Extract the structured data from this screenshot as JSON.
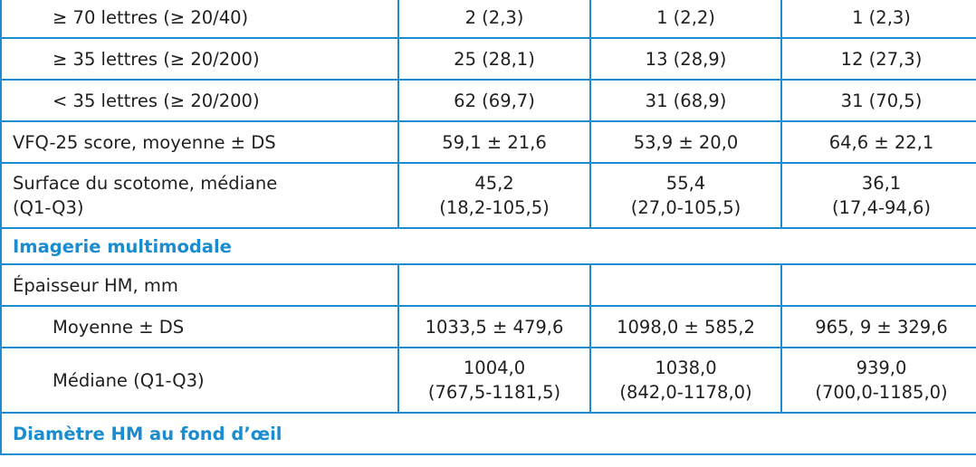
{
  "rows": [
    {
      "type": "data",
      "indent": true,
      "label": "≥ 70 lettres (≥ 20/40)",
      "v1": "2 (2,3)",
      "v2": "1 (2,2)",
      "v3": "1 (2,3)"
    },
    {
      "type": "data",
      "indent": true,
      "label": "≥ 35 lettres (≥ 20/200)",
      "v1": "25 (28,1)",
      "v2": "13 (28,9)",
      "v3": "12 (27,3)"
    },
    {
      "type": "data",
      "indent": true,
      "label": "< 35 lettres (≥ 20/200)",
      "v1": "62 (69,7)",
      "v2": "31 (68,9)",
      "v3": "31 (70,5)"
    },
    {
      "type": "data",
      "indent": false,
      "label": "VFQ-25 score, moyenne ± DS",
      "v1": "59,1 ± 21,6",
      "v2": "53,9 ± 20,0",
      "v3": "64,6 ± 22,1"
    },
    {
      "type": "data2",
      "indent": false,
      "label1": "Surface du scotome, médiane",
      "label2": "(Q1-Q3)",
      "v1a": "45,2",
      "v1b": "(18,2-105,5)",
      "v2a": "55,4",
      "v2b": "(27,0-105,5)",
      "v3a": "36,1",
      "v3b": "(17,4-94,6)"
    },
    {
      "type": "section",
      "label": "Imagerie multimodale"
    },
    {
      "type": "data",
      "indent": false,
      "label": "Épaisseur HM, mm",
      "v1": "",
      "v2": "",
      "v3": ""
    },
    {
      "type": "data",
      "indent": true,
      "label": "Moyenne ± DS",
      "v1": "1033,5 ± 479,6",
      "v2": "1098,0 ± 585,2",
      "v3": "965, 9 ± 329,6"
    },
    {
      "type": "data2",
      "indent": true,
      "label1": "Médiane (Q1-Q3)",
      "label2": "",
      "v1a": "1004,0",
      "v1b": "(767,5-1181,5)",
      "v2a": "1038,0",
      "v2b": "(842,0-1178,0)",
      "v3a": "939,0",
      "v3b": "(700,0-1185,0)"
    },
    {
      "type": "section",
      "label": "Diamètre HM au fond d’œil"
    }
  ]
}
